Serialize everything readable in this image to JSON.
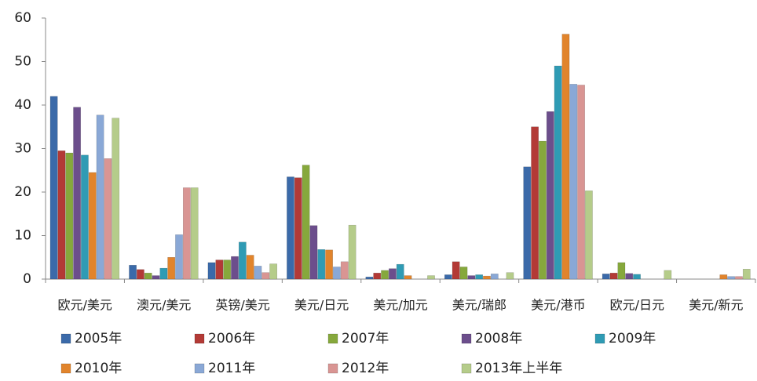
{
  "chart_data": {
    "type": "bar",
    "categories": [
      "欧元/美元",
      "澳元/美元",
      "英镑/美元",
      "美元/日元",
      "美元/加元",
      "美元/瑞郎",
      "美元/港币",
      "欧元/日元",
      "美元/新元"
    ],
    "series": [
      {
        "name": "2005年",
        "color": "#3b6aa9",
        "values": [
          42,
          3.2,
          3.8,
          23.5,
          0.5,
          1,
          25.8,
          1.2,
          null
        ]
      },
      {
        "name": "2006年",
        "color": "#b33a36",
        "values": [
          29.5,
          2.2,
          4.4,
          23.3,
          1.4,
          4,
          35,
          1.4,
          null
        ]
      },
      {
        "name": "2007年",
        "color": "#86a83c",
        "values": [
          29,
          1.4,
          4.4,
          26.2,
          2,
          2.8,
          31.7,
          3.8,
          null
        ]
      },
      {
        "name": "2008年",
        "color": "#6c4e8c",
        "values": [
          39.5,
          0.8,
          5.2,
          12.3,
          2.4,
          0.8,
          38.5,
          1.3,
          null
        ]
      },
      {
        "name": "2009年",
        "color": "#2f9bb4",
        "values": [
          28.5,
          2.5,
          8.5,
          6.8,
          3.4,
          1,
          49,
          1.1,
          null
        ]
      },
      {
        "name": "2010年",
        "color": "#e1842c",
        "values": [
          24.5,
          5,
          5.5,
          6.7,
          0.8,
          0.7,
          56.3,
          null,
          1
        ]
      },
      {
        "name": "2011年",
        "color": "#8aa8d6",
        "values": [
          37.7,
          10.2,
          3,
          2.8,
          null,
          1.2,
          44.8,
          null,
          0.6
        ]
      },
      {
        "name": "2012年",
        "color": "#d99593",
        "values": [
          27.7,
          21,
          1.5,
          4,
          null,
          null,
          44.6,
          null,
          0.6
        ]
      },
      {
        "name": "2013年上半年",
        "color": "#b5cc8a",
        "values": [
          37,
          21,
          3.5,
          12.4,
          0.8,
          1.5,
          20.3,
          2,
          2.3
        ]
      }
    ],
    "ylim": [
      0,
      60
    ],
    "yticks": [
      0,
      10,
      20,
      30,
      40,
      50,
      60
    ],
    "grid": false
  }
}
